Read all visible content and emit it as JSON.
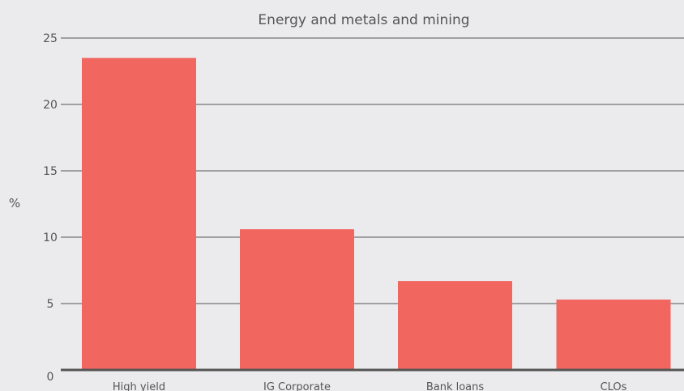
{
  "chart_data": {
    "type": "bar",
    "subtitle": "Energy and metals and mining",
    "ylabel": "%",
    "categories": [
      "High yield",
      "IG Corporate",
      "Bank loans",
      "CLOs"
    ],
    "values": [
      23.5,
      10.6,
      6.7,
      5.3
    ],
    "ylim": [
      0,
      25
    ],
    "yticks": [
      0,
      5,
      10,
      15,
      20,
      25
    ],
    "grid": true,
    "bar_color": "#f26660"
  }
}
